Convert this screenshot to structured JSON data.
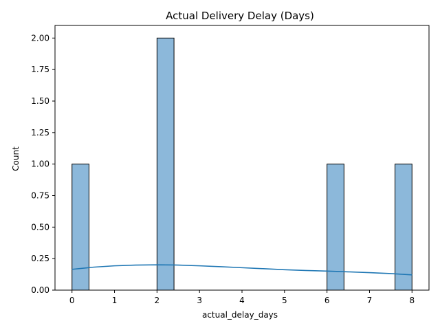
{
  "chart_data": {
    "type": "bar",
    "title": "Actual Delivery Delay (Days)",
    "xlabel": "actual_delay_days",
    "ylabel": "Count",
    "xlim": [
      -0.4,
      8.4
    ],
    "ylim": [
      0,
      2.1
    ],
    "x_ticks": [
      0,
      1,
      2,
      3,
      4,
      5,
      6,
      7,
      8
    ],
    "y_ticks": [
      0,
      0.25,
      0.5,
      0.75,
      1.0,
      1.25,
      1.5,
      1.75,
      2.0
    ],
    "y_tick_labels": [
      "0.00",
      "0.25",
      "0.50",
      "0.75",
      "1.00",
      "1.25",
      "1.50",
      "1.75",
      "2.00"
    ],
    "bin_width": 0.4,
    "bins": [
      {
        "start": 0.0,
        "end": 0.4,
        "count": 1
      },
      {
        "start": 2.0,
        "end": 2.4,
        "count": 2
      },
      {
        "start": 6.0,
        "end": 6.4,
        "count": 1
      },
      {
        "start": 7.6,
        "end": 8.0,
        "count": 1
      }
    ],
    "kde": {
      "x": [
        0.0,
        0.5,
        1.0,
        1.5,
        2.0,
        2.5,
        3.0,
        3.5,
        4.0,
        4.5,
        5.0,
        5.5,
        6.0,
        6.5,
        7.0,
        7.5,
        8.0
      ],
      "y": [
        0.165,
        0.182,
        0.193,
        0.199,
        0.201,
        0.199,
        0.193,
        0.186,
        0.178,
        0.17,
        0.162,
        0.156,
        0.151,
        0.145,
        0.139,
        0.131,
        0.121
      ]
    },
    "colors": {
      "bar_fill": "#8cb8da",
      "bar_edge": "#000000",
      "kde_line": "#1f77b4"
    },
    "grid": false,
    "legend": "none"
  }
}
